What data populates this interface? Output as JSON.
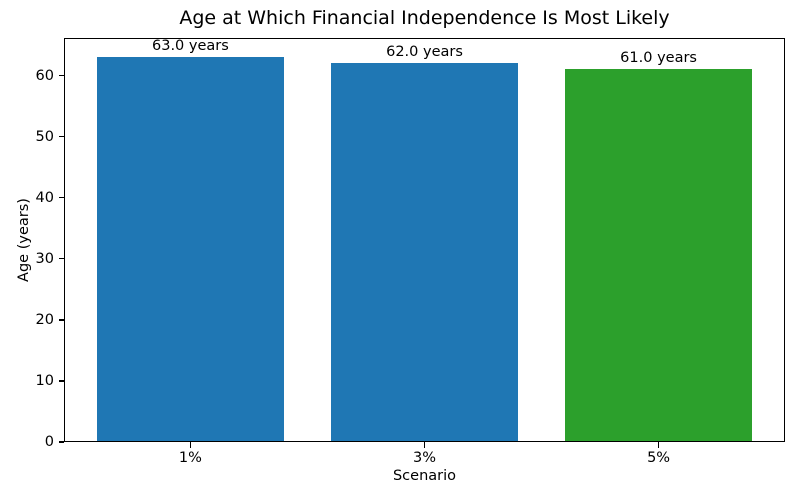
{
  "chart_data": {
    "type": "bar",
    "title": "Age at Which Financial Independence Is Most Likely",
    "xlabel": "Scenario",
    "ylabel": "Age (years)",
    "categories": [
      "1%",
      "3%",
      "5%"
    ],
    "values": [
      63.0,
      62.0,
      61.0
    ],
    "bar_value_labels": [
      "63.0 years",
      "62.0 years",
      "61.0 years"
    ],
    "bar_colors": [
      "#1f77b4",
      "#1f77b4",
      "#2ca02c"
    ],
    "yticks": [
      0,
      10,
      20,
      30,
      40,
      50,
      60
    ],
    "ylim": [
      0,
      66.15
    ],
    "grid": false,
    "legend_position": "none",
    "axis_color": "#000000",
    "background_color": "#ffffff"
  }
}
